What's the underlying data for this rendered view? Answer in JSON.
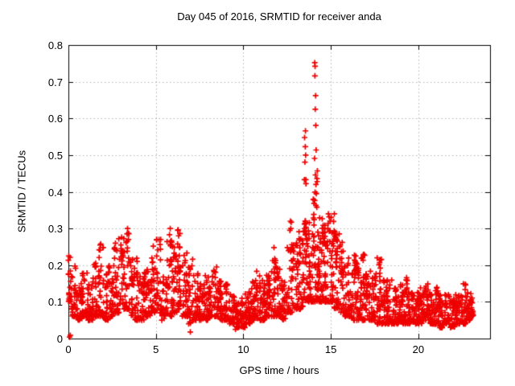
{
  "window": {
    "background": "#ffffff",
    "text_color": "#000000"
  },
  "chart_data": {
    "type": "scatter",
    "title": "Day 045 of 2016, SRMTID for receiver anda",
    "xlabel": "GPS time / hours",
    "ylabel": "SRMTID / TECUs",
    "xlim": [
      0,
      24.1
    ],
    "ylim": [
      0,
      0.8
    ],
    "xticks": [
      [
        0,
        "0"
      ],
      [
        5,
        "5"
      ],
      [
        10,
        "10"
      ],
      [
        15,
        "15"
      ],
      [
        20,
        "20"
      ]
    ],
    "yticks": [
      [
        0,
        "0"
      ],
      [
        0.1,
        "0.1"
      ],
      [
        0.2,
        "0.2"
      ],
      [
        0.3,
        "0.3"
      ],
      [
        0.4,
        "0.4"
      ],
      [
        0.5,
        "0.5"
      ],
      [
        0.6,
        "0.6"
      ],
      [
        0.7,
        "0.7"
      ],
      [
        0.8,
        "0.8"
      ]
    ],
    "grid": {
      "show": true,
      "style": "dotted",
      "color": "#b0b0b0"
    },
    "axis_color": "#000000",
    "legend_position": "none",
    "marker": {
      "glyph": "plus",
      "color": "#ee0000",
      "size": 7
    },
    "series_name": "SRMTID",
    "data_start_hour": 0.05,
    "data_end_hour": 23.15,
    "band_envelope": [
      [
        0.0,
        0.2,
        0.1,
        0.23,
        22
      ],
      [
        0.2,
        0.5,
        0.06,
        0.2,
        30
      ],
      [
        0.5,
        0.8,
        0.05,
        0.16,
        30
      ],
      [
        0.8,
        1.1,
        0.06,
        0.18,
        30
      ],
      [
        1.1,
        1.4,
        0.05,
        0.15,
        30
      ],
      [
        1.4,
        1.7,
        0.06,
        0.21,
        30
      ],
      [
        1.7,
        2.0,
        0.06,
        0.26,
        30
      ],
      [
        2.0,
        2.3,
        0.05,
        0.18,
        30
      ],
      [
        2.3,
        2.6,
        0.06,
        0.2,
        30
      ],
      [
        2.6,
        2.9,
        0.07,
        0.27,
        30
      ],
      [
        2.9,
        3.2,
        0.08,
        0.28,
        30
      ],
      [
        3.2,
        3.5,
        0.08,
        0.3,
        30
      ],
      [
        3.5,
        3.8,
        0.06,
        0.22,
        30
      ],
      [
        3.8,
        4.1,
        0.05,
        0.23,
        30
      ],
      [
        4.1,
        4.4,
        0.05,
        0.18,
        30
      ],
      [
        4.4,
        4.7,
        0.06,
        0.22,
        30
      ],
      [
        4.7,
        5.0,
        0.07,
        0.26,
        30
      ],
      [
        5.0,
        5.3,
        0.07,
        0.28,
        30
      ],
      [
        5.3,
        5.6,
        0.05,
        0.18,
        30
      ],
      [
        5.6,
        5.9,
        0.06,
        0.3,
        30
      ],
      [
        5.9,
        6.2,
        0.07,
        0.26,
        30
      ],
      [
        6.2,
        6.5,
        0.08,
        0.3,
        30
      ],
      [
        6.5,
        6.8,
        0.06,
        0.24,
        30
      ],
      [
        6.8,
        7.1,
        0.04,
        0.22,
        30
      ],
      [
        7.1,
        7.4,
        0.05,
        0.18,
        30
      ],
      [
        7.4,
        7.7,
        0.05,
        0.16,
        30
      ],
      [
        7.7,
        8.0,
        0.05,
        0.18,
        30
      ],
      [
        8.0,
        8.3,
        0.06,
        0.18,
        30
      ],
      [
        8.3,
        8.6,
        0.06,
        0.2,
        30
      ],
      [
        8.6,
        8.9,
        0.05,
        0.17,
        30
      ],
      [
        8.9,
        9.2,
        0.05,
        0.15,
        30
      ],
      [
        9.2,
        9.5,
        0.04,
        0.12,
        28
      ],
      [
        9.5,
        9.8,
        0.03,
        0.1,
        28
      ],
      [
        9.8,
        10.1,
        0.03,
        0.11,
        28
      ],
      [
        10.1,
        10.4,
        0.04,
        0.13,
        30
      ],
      [
        10.4,
        10.7,
        0.05,
        0.16,
        30
      ],
      [
        10.7,
        11.0,
        0.05,
        0.19,
        30
      ],
      [
        11.0,
        11.3,
        0.05,
        0.16,
        30
      ],
      [
        11.3,
        11.6,
        0.06,
        0.18,
        30
      ],
      [
        11.6,
        11.9,
        0.06,
        0.23,
        30
      ],
      [
        11.9,
        12.2,
        0.06,
        0.2,
        30
      ],
      [
        12.2,
        12.5,
        0.05,
        0.16,
        30
      ],
      [
        12.5,
        12.8,
        0.07,
        0.26,
        30
      ],
      [
        12.8,
        13.1,
        0.08,
        0.27,
        32
      ],
      [
        13.1,
        13.4,
        0.08,
        0.3,
        34
      ],
      [
        13.4,
        13.7,
        0.1,
        0.33,
        36
      ],
      [
        13.7,
        14.0,
        0.1,
        0.32,
        36
      ],
      [
        14.0,
        14.3,
        0.1,
        0.38,
        40
      ],
      [
        14.3,
        14.6,
        0.1,
        0.35,
        40
      ],
      [
        14.6,
        14.9,
        0.1,
        0.32,
        36
      ],
      [
        14.9,
        15.2,
        0.1,
        0.34,
        36
      ],
      [
        15.2,
        15.5,
        0.08,
        0.29,
        32
      ],
      [
        15.5,
        15.8,
        0.07,
        0.26,
        30
      ],
      [
        15.8,
        16.1,
        0.06,
        0.22,
        30
      ],
      [
        16.1,
        16.4,
        0.05,
        0.23,
        30
      ],
      [
        16.4,
        16.7,
        0.05,
        0.22,
        30
      ],
      [
        16.7,
        17.0,
        0.05,
        0.23,
        30
      ],
      [
        17.0,
        17.3,
        0.05,
        0.19,
        30
      ],
      [
        17.3,
        17.6,
        0.05,
        0.18,
        30
      ],
      [
        17.6,
        17.9,
        0.04,
        0.22,
        30
      ],
      [
        17.9,
        18.2,
        0.04,
        0.16,
        30
      ],
      [
        18.2,
        18.5,
        0.04,
        0.16,
        30
      ],
      [
        18.5,
        18.8,
        0.04,
        0.14,
        30
      ],
      [
        18.8,
        19.1,
        0.04,
        0.15,
        30
      ],
      [
        19.1,
        19.4,
        0.04,
        0.17,
        30
      ],
      [
        19.4,
        19.7,
        0.04,
        0.13,
        30
      ],
      [
        19.7,
        20.0,
        0.04,
        0.13,
        30
      ],
      [
        20.0,
        20.3,
        0.04,
        0.14,
        30
      ],
      [
        20.3,
        20.6,
        0.05,
        0.15,
        30
      ],
      [
        20.6,
        20.9,
        0.04,
        0.13,
        30
      ],
      [
        20.9,
        21.2,
        0.04,
        0.14,
        30
      ],
      [
        21.2,
        21.5,
        0.03,
        0.12,
        30
      ],
      [
        21.5,
        21.8,
        0.04,
        0.12,
        30
      ],
      [
        21.8,
        22.1,
        0.03,
        0.11,
        30
      ],
      [
        22.1,
        22.4,
        0.04,
        0.12,
        30
      ],
      [
        22.4,
        22.7,
        0.04,
        0.15,
        30
      ],
      [
        22.7,
        23.0,
        0.05,
        0.13,
        30
      ],
      [
        23.0,
        23.15,
        0.06,
        0.13,
        16
      ]
    ],
    "outliers": [
      [
        14.08,
        0.752
      ],
      [
        14.1,
        0.742
      ],
      [
        14.09,
        0.716
      ],
      [
        14.13,
        0.662
      ],
      [
        14.11,
        0.625
      ],
      [
        14.14,
        0.581
      ],
      [
        14.16,
        0.514
      ],
      [
        14.07,
        0.491
      ],
      [
        14.23,
        0.457
      ],
      [
        14.12,
        0.446
      ],
      [
        14.21,
        0.436
      ],
      [
        14.22,
        0.428
      ],
      [
        14.15,
        0.42
      ],
      [
        14.1,
        0.399
      ],
      [
        14.17,
        0.395
      ],
      [
        14.08,
        0.376
      ],
      [
        14.2,
        0.358
      ],
      [
        13.55,
        0.566
      ],
      [
        13.5,
        0.548
      ],
      [
        13.54,
        0.523
      ],
      [
        13.56,
        0.5
      ],
      [
        13.52,
        0.481
      ],
      [
        13.49,
        0.433
      ],
      [
        13.57,
        0.433
      ],
      [
        13.58,
        0.422
      ],
      [
        13.53,
        0.32
      ],
      [
        13.51,
        0.3
      ],
      [
        13.59,
        0.285
      ],
      [
        12.69,
        0.32
      ],
      [
        12.74,
        0.317
      ],
      [
        12.71,
        0.3
      ],
      [
        12.66,
        0.295
      ],
      [
        14.86,
        0.34
      ],
      [
        14.9,
        0.332
      ],
      [
        14.95,
        0.32
      ],
      [
        14.83,
        0.3
      ],
      [
        15.02,
        0.33
      ],
      [
        15.24,
        0.29
      ],
      [
        15.29,
        0.282
      ],
      [
        15.33,
        0.27
      ],
      [
        3.38,
        0.3
      ],
      [
        3.35,
        0.285
      ],
      [
        2.88,
        0.272
      ],
      [
        5.82,
        0.3
      ],
      [
        6.25,
        0.295
      ],
      [
        6.3,
        0.28
      ],
      [
        5.05,
        0.27
      ],
      [
        1.85,
        0.258
      ],
      [
        4.85,
        0.252
      ],
      [
        11.75,
        0.248
      ],
      [
        15.65,
        0.262
      ],
      [
        16.42,
        0.225
      ],
      [
        16.85,
        0.228
      ],
      [
        17.65,
        0.22
      ],
      [
        17.82,
        0.215
      ],
      [
        0.07,
        0.004
      ],
      [
        0.11,
        0.009
      ],
      [
        6.97,
        0.018
      ],
      [
        9.55,
        0.025
      ]
    ]
  }
}
